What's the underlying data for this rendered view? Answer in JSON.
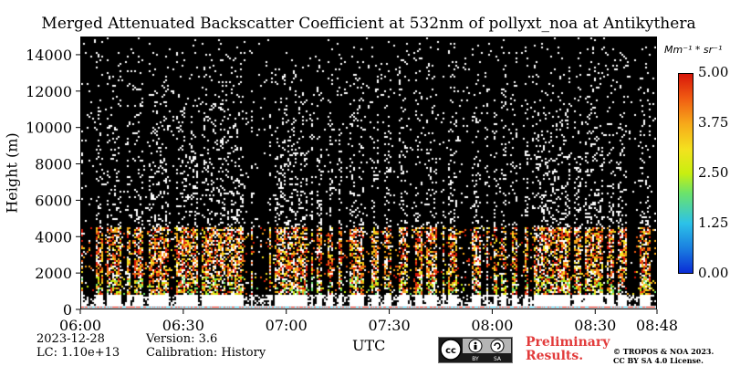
{
  "chart_data": {
    "type": "heatmap",
    "title": "Merged Attenuated Backscatter Coefficient at 532nm of pollyxt_noa at Antikythera",
    "xlabel": "UTC",
    "ylabel": "Height (m)",
    "x_ticks": [
      "06:00",
      "06:30",
      "07:00",
      "07:30",
      "08:00",
      "08:30",
      "08:48"
    ],
    "xlim": [
      "06:00",
      "08:48"
    ],
    "y_ticks": [
      0,
      2000,
      4000,
      6000,
      8000,
      10000,
      12000,
      14000
    ],
    "ylim": [
      0,
      15000
    ],
    "colorbar": {
      "unit": "Mm⁻¹ * sr⁻¹",
      "ticks": [
        "0.00",
        "1.25",
        "2.50",
        "3.75",
        "5.00"
      ],
      "range": [
        0,
        5
      ]
    }
  },
  "footer": {
    "date": "2023-12-28",
    "version": "Version: 3.6",
    "lc": "LC: 1.10e+13",
    "calibration": "Calibration: History",
    "preliminary_line1": "Preliminary",
    "preliminary_line2": "Results.",
    "copyright_line1": "© TROPOS & NOA 2023.",
    "copyright_line2": "CC BY SA 4.0 License.",
    "license_icon_labels": [
      "BY",
      "SA"
    ]
  }
}
